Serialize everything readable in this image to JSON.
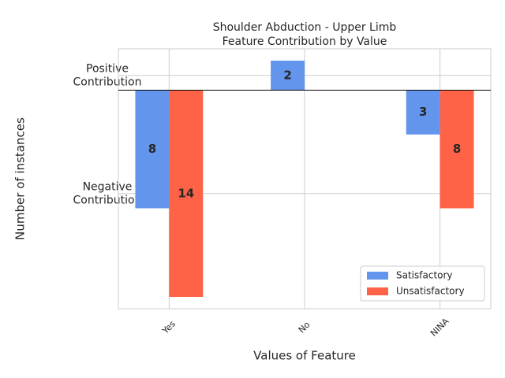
{
  "chart_data": {
    "type": "bar",
    "title": "Shoulder Abduction - Upper Limb\nFeature Contribution by Value",
    "x_label": "Values of Feature",
    "y_label": "Number of instances",
    "categories": [
      "Yes",
      "No",
      "NINA"
    ],
    "series": [
      {
        "name": "Satisfactory",
        "color": "#6495ed",
        "values": [
          -8,
          2,
          -3
        ],
        "value_labels": [
          "8",
          "2",
          "3"
        ]
      },
      {
        "name": "Unsatisfactory",
        "color": "#ff6347",
        "values": [
          -14,
          null,
          -8
        ],
        "value_labels": [
          "14",
          null,
          "8"
        ]
      }
    ],
    "ylim": [
      -14.8,
      2.8
    ],
    "yticks": [
      {
        "value": 1,
        "label": "Positive\nContribution"
      },
      {
        "value": -7,
        "label": "Negative\nContribution"
      }
    ],
    "grid": true,
    "legend": "lower right"
  }
}
